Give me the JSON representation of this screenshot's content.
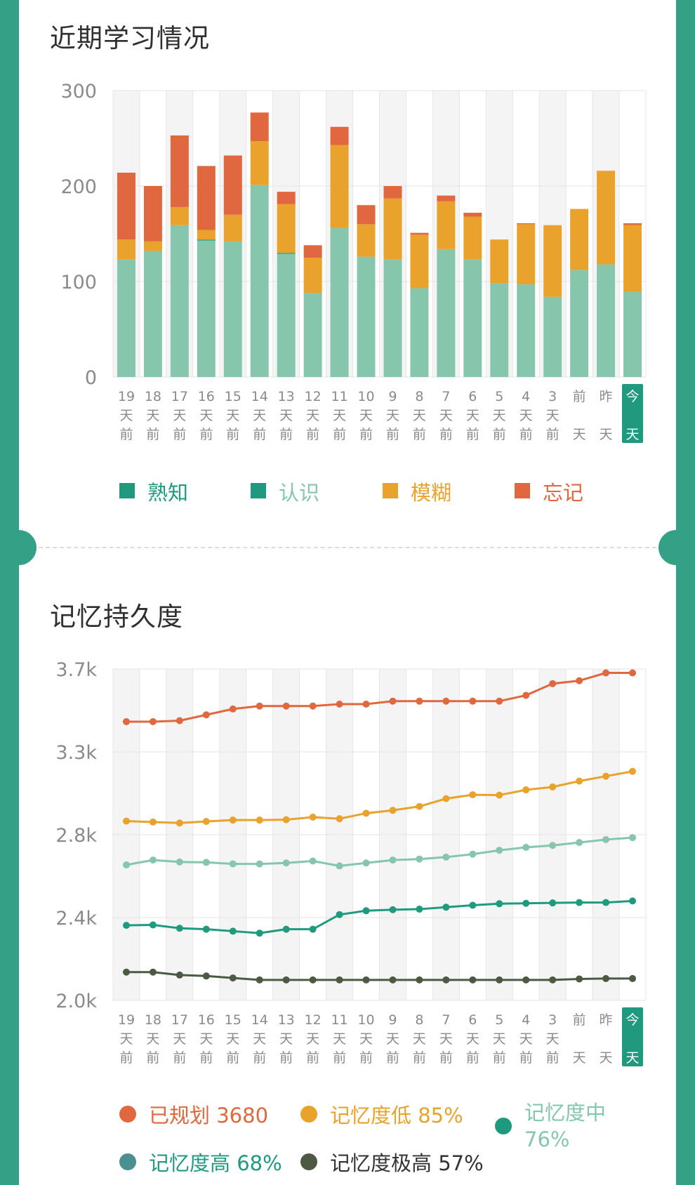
{
  "titles": {
    "recent": "近期学习情况",
    "memory": "记忆持久度"
  },
  "colors": {
    "frame": "#34a085",
    "familiar": "#85c6ac",
    "recognize": "#1f9a7f",
    "blurry": "#e9a22c",
    "forgot": "#e0673e",
    "planned": "#e0673e",
    "mem_low": "#e9a22c",
    "mem_mid": "#85c6ac",
    "mem_high": "#1f9a7f",
    "mem_very_high": "#4c5a43",
    "today_badge": "#1f9a7f"
  },
  "x_labels": [
    [
      "19",
      "天",
      "前"
    ],
    [
      "18",
      "天",
      "前"
    ],
    [
      "17",
      "天",
      "前"
    ],
    [
      "16",
      "天",
      "前"
    ],
    [
      "15",
      "天",
      "前"
    ],
    [
      "14",
      "天",
      "前"
    ],
    [
      "13",
      "天",
      "前"
    ],
    [
      "12",
      "天",
      "前"
    ],
    [
      "11",
      "天",
      "前"
    ],
    [
      "10",
      "天",
      "前"
    ],
    [
      "9",
      "天",
      "前"
    ],
    [
      "8",
      "天",
      "前"
    ],
    [
      "7",
      "天",
      "前"
    ],
    [
      "6",
      "天",
      "前"
    ],
    [
      "5",
      "天",
      "前"
    ],
    [
      "4",
      "天",
      "前"
    ],
    [
      "3",
      "天",
      "前"
    ],
    [
      "前",
      "",
      "天"
    ],
    [
      "昨",
      "",
      "天"
    ],
    [
      "今",
      "",
      "天"
    ]
  ],
  "chart_data": [
    {
      "type": "bar",
      "stacked": true,
      "title": "近期学习情况",
      "categories": [
        "19天前",
        "18天前",
        "17天前",
        "16天前",
        "15天前",
        "14天前",
        "13天前",
        "12天前",
        "11天前",
        "10天前",
        "9天前",
        "8天前",
        "7天前",
        "6天前",
        "5天前",
        "4天前",
        "3天前",
        "前天",
        "昨天",
        "今天"
      ],
      "yticks": [
        "300",
        "200",
        "100",
        "0"
      ],
      "ylim": [
        0,
        300
      ],
      "grid": true,
      "legend_position": "bottom",
      "series": [
        {
          "name": "熟知",
          "values": [
            123,
            132,
            159,
            143,
            142,
            201,
            129,
            88,
            156,
            126,
            123,
            93,
            134,
            123,
            98,
            97,
            84,
            112,
            118,
            89
          ]
        },
        {
          "name": "认识",
          "values": [
            0,
            0,
            0,
            1,
            0,
            0,
            1,
            0,
            0,
            0,
            0,
            0,
            0,
            0,
            0,
            0,
            0,
            0,
            0,
            0
          ]
        },
        {
          "name": "模糊",
          "values": [
            21,
            10,
            19,
            10,
            28,
            46,
            51,
            37,
            87,
            34,
            64,
            56,
            50,
            45,
            46,
            63,
            75,
            64,
            98,
            70
          ]
        },
        {
          "name": "忘记",
          "values": [
            70,
            58,
            75,
            67,
            62,
            30,
            13,
            13,
            19,
            20,
            13,
            2,
            6,
            4,
            0,
            1,
            0,
            0,
            0,
            2
          ]
        }
      ]
    },
    {
      "type": "line",
      "title": "记忆持久度",
      "categories": [
        "19天前",
        "18天前",
        "17天前",
        "16天前",
        "15天前",
        "14天前",
        "13天前",
        "12天前",
        "11天前",
        "10天前",
        "9天前",
        "8天前",
        "7天前",
        "6天前",
        "5天前",
        "4天前",
        "3天前",
        "前天",
        "昨天",
        "今天"
      ],
      "yticks": [
        "3.7k",
        "3.3k",
        "2.8k",
        "2.4k",
        "2.0k"
      ],
      "ylim": [
        2000,
        3700
      ],
      "grid": true,
      "legend_position": "bottom",
      "series": [
        {
          "name": "已规划",
          "label": "已规划 3680",
          "values": [
            3430,
            3430,
            3435,
            3465,
            3495,
            3510,
            3510,
            3510,
            3520,
            3520,
            3535,
            3535,
            3535,
            3535,
            3535,
            3565,
            3625,
            3640,
            3680,
            3680
          ]
        },
        {
          "name": "记忆度低",
          "label": "记忆度低 85%",
          "values": [
            2920,
            2915,
            2910,
            2918,
            2925,
            2925,
            2927,
            2940,
            2932,
            2960,
            2975,
            2995,
            3035,
            3055,
            3053,
            3080,
            3095,
            3125,
            3150,
            3175
          ]
        },
        {
          "name": "记忆度中",
          "label": "记忆度中 76%",
          "values": [
            2695,
            2720,
            2710,
            2708,
            2700,
            2700,
            2705,
            2715,
            2690,
            2705,
            2720,
            2725,
            2735,
            2750,
            2770,
            2785,
            2795,
            2810,
            2825,
            2835
          ]
        },
        {
          "name": "记忆度高",
          "label": "记忆度高 68%",
          "values": [
            2385,
            2387,
            2370,
            2365,
            2355,
            2345,
            2365,
            2365,
            2440,
            2460,
            2465,
            2468,
            2478,
            2488,
            2496,
            2498,
            2500,
            2502,
            2502,
            2510
          ]
        },
        {
          "name": "记忆度极高",
          "label": "记忆度极高 57%",
          "values": [
            2145,
            2145,
            2130,
            2125,
            2115,
            2105,
            2105,
            2105,
            2105,
            2105,
            2105,
            2105,
            2105,
            2105,
            2105,
            2105,
            2105,
            2110,
            2112,
            2112
          ]
        }
      ]
    }
  ],
  "legend1": [
    {
      "text": "熟知"
    },
    {
      "text": "认识"
    },
    {
      "text": "模糊"
    },
    {
      "text": "忘记"
    }
  ],
  "legend2": [
    {
      "text": "已规划 3680"
    },
    {
      "text": "记忆度低 85%"
    },
    {
      "text": "记忆度中"
    },
    {
      "text": "76%"
    },
    {
      "text": "记忆度高 68%"
    },
    {
      "text": "记忆度极高 57%"
    }
  ]
}
